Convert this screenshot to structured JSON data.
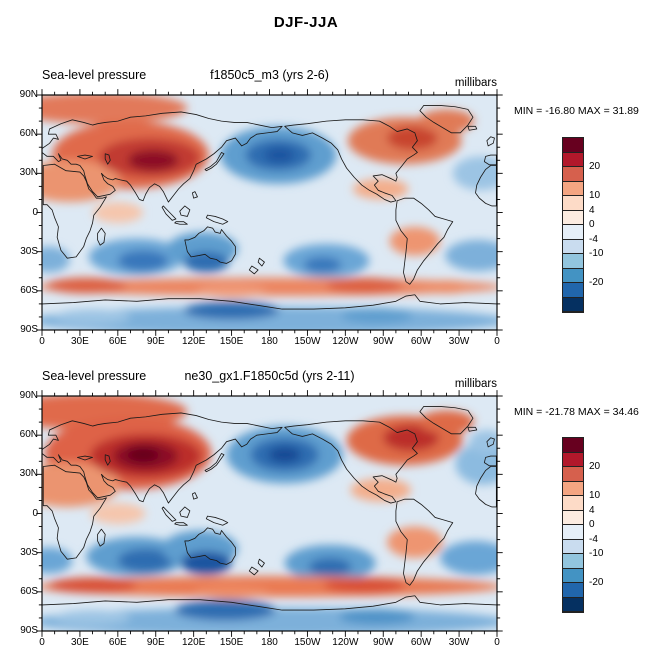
{
  "figure": {
    "title": "DJF-JJA"
  },
  "panels": [
    {
      "title_left": "Sea-level pressure",
      "title_center": "f1850c5_m3 (yrs 2-6)",
      "units": "millibars",
      "stats": "MIN = -16.80 MAX = 31.89",
      "min": -16.8,
      "max": 31.89
    },
    {
      "title_left": "Sea-level pressure",
      "title_center": "ne30_gx1.F1850c5d (yrs 2-11)",
      "units": "millibars",
      "stats": "MIN = -21.78 MAX = 34.46",
      "min": -21.78,
      "max": 34.46
    }
  ],
  "axes": {
    "lat_ticks": [
      "90N",
      "60N",
      "30N",
      "0",
      "30S",
      "60S",
      "90S"
    ],
    "lon_ticks": [
      "0",
      "30E",
      "60E",
      "90E",
      "120E",
      "150E",
      "180",
      "150W",
      "120W",
      "90W",
      "60W",
      "30W",
      "0"
    ]
  },
  "colorbar": {
    "colors": [
      "#67001f",
      "#b2182b",
      "#d6604d",
      "#f4a582",
      "#fddbc7",
      "#fcece1",
      "#e6eff8",
      "#c9dcef",
      "#92c5de",
      "#4393c3",
      "#2166ac",
      "#053061"
    ],
    "labels": [
      {
        "text": "20",
        "boundary": 2
      },
      {
        "text": "10",
        "boundary": 4
      },
      {
        "text": "4",
        "boundary": 5
      },
      {
        "text": "0",
        "boundary": 6
      },
      {
        "text": "-4",
        "boundary": 7
      },
      {
        "text": "-10",
        "boundary": 8
      },
      {
        "text": "-20",
        "boundary": 10
      }
    ]
  },
  "chart_data": {
    "type": "heatmap",
    "title": "DJF-JJA",
    "variable": "Sea-level pressure (seasonal difference DJF minus JJA)",
    "units": "millibars",
    "projection": "global equirectangular; longitude runs 0E eastward across 180 back to 0 (left to right); latitude 90N (top) to 90S (bottom)",
    "x_ticks": [
      "0",
      "30E",
      "60E",
      "90E",
      "120E",
      "150E",
      "180",
      "150W",
      "120W",
      "90W",
      "60W",
      "30W",
      "0"
    ],
    "y_ticks": [
      "90N",
      "60N",
      "30N",
      "0",
      "30S",
      "60S",
      "90S"
    ],
    "contour_levels_labeled": [
      20,
      10,
      4,
      0,
      -4,
      -10,
      -20
    ],
    "palette": "diverging red (positive) / blue (negative), near-white around 0",
    "panels": [
      {
        "model": "f1850c5_m3",
        "years": "yrs 2-6",
        "min": -16.8,
        "max": 31.89,
        "features": [
          "strong positive center (> 20 mb) over central Asia near 40N, 60-110E",
          "strong negative center (< -10 mb) over the North Pacific near 45N, 180",
          "positive center over eastern North America / North Atlantic near 55N",
          "weak negative over eastern subtropical Atlantic at the right edge",
          "negative centers over southern mid-latitude oceans: South Indian, south of Australia, South Pacific, South Atlantic",
          "positive circumpolar band near 55-65S",
          "negative values along the Antarctic coast 70-90S"
        ]
      },
      {
        "model": "ne30_gx1.F1850c5d",
        "years": "yrs 2-11",
        "min": -21.78,
        "max": 34.46,
        "features": [
          "same pattern as upper panel but amplified: darker positive core (> 28 mb) over central Asia",
          "deeper North Pacific negative center",
          "stronger southern-ocean negative centers and stronger 60S positive band",
          "larger negative patch in eastern Atlantic at the right edge"
        ]
      }
    ]
  }
}
